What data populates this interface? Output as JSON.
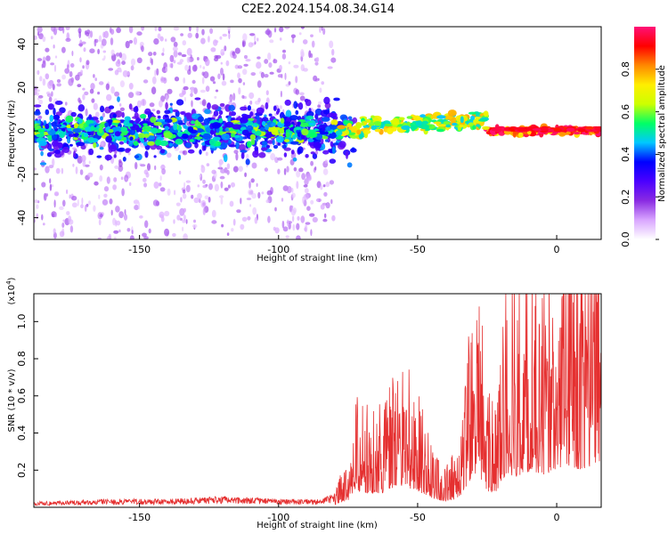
{
  "figure": {
    "title": "C2E2.2024.154.08.34.G14"
  },
  "chart_data": [
    {
      "type": "heatmap",
      "xlabel": "Height of straight line (km)",
      "ylabel": "Frequency (Hz)",
      "xlim": [
        -188,
        16
      ],
      "ylim": [
        -50,
        48
      ],
      "xticks": [
        -150,
        -100,
        -50,
        0
      ],
      "yticks": [
        -40,
        -20,
        0,
        20,
        40
      ],
      "colorbar": {
        "label": "Normalized spectral amplitude",
        "range": [
          0.0,
          1.0
        ],
        "ticks": [
          0.0,
          0.2,
          0.4,
          0.6,
          0.8
        ],
        "colors": [
          "#ffffff",
          "#d9a6ff",
          "#8a2be2",
          "#4b00ff",
          "#0000ff",
          "#00c8ff",
          "#00ff66",
          "#ccff00",
          "#ffee00",
          "#ff8800",
          "#ff0000",
          "#ff1077"
        ]
      },
      "features": {
        "scatter_region_x": [
          -188,
          -80
        ],
        "scatter_frequency_spread_hz": [
          -50,
          48
        ],
        "main_ridge_frequency_hz": 0,
        "main_ridge_x": [
          -188,
          16
        ],
        "high_amplitude_segment_x": [
          -22,
          16
        ]
      }
    },
    {
      "type": "line",
      "xlabel": "Height of straight line (km)",
      "ylabel": "SNR (10 * v/v)",
      "y_multiplier_label": "(x10",
      "y_multiplier_exp": "4",
      "y_multiplier_close": ")",
      "xlim": [
        -188,
        16
      ],
      "ylim": [
        0,
        1.15
      ],
      "xticks": [
        -150,
        -100,
        -50,
        0
      ],
      "yticks": [
        "0.2",
        "0.4",
        "0.6",
        "0.8",
        "1.0"
      ],
      "ytick_values": [
        0.2,
        0.4,
        0.6,
        0.8,
        1.0
      ],
      "series": [
        {
          "color": "#e53030",
          "envelope": {
            "x": [
              -188,
              -160,
              -140,
              -120,
              -100,
              -85,
              -80,
              -75,
              -72,
              -68,
              -63,
              -58,
              -55,
              -50,
              -45,
              -40,
              -35,
              -32,
              -30,
              -28,
              -25,
              -22,
              -18,
              -15,
              -10,
              -5,
              0,
              5,
              10,
              14,
              16
            ],
            "y": [
              0.02,
              0.03,
              0.03,
              0.04,
              0.03,
              0.03,
              0.05,
              0.15,
              0.35,
              0.3,
              0.3,
              0.45,
              0.45,
              0.35,
              0.2,
              0.12,
              0.2,
              0.5,
              0.7,
              0.7,
              0.35,
              0.3,
              0.75,
              0.65,
              0.75,
              0.7,
              0.8,
              0.85,
              0.8,
              0.95,
              0.9
            ]
          }
        }
      ]
    }
  ]
}
